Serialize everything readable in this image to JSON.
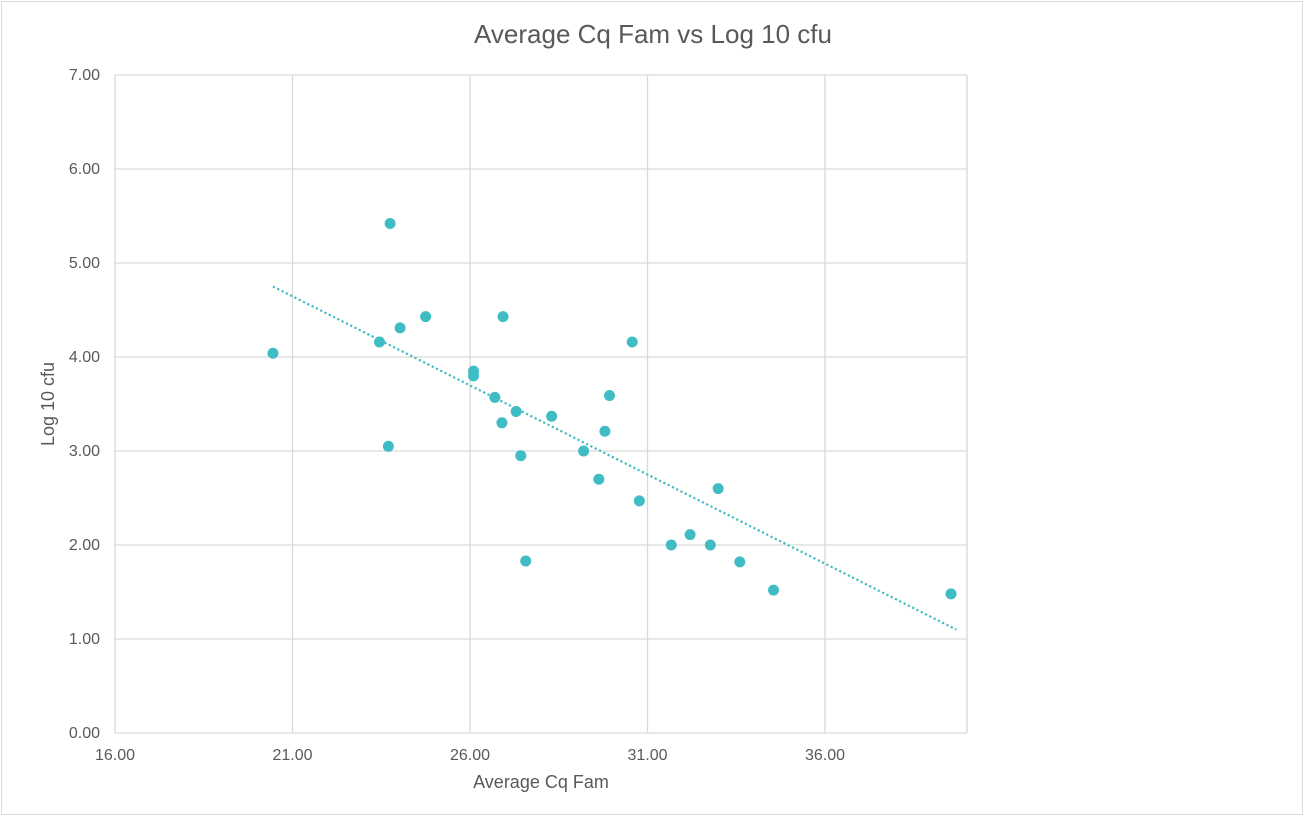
{
  "chart_data": {
    "type": "scatter",
    "title": "Average Cq Fam vs Log 10 cfu",
    "xlabel": "Average Cq Fam",
    "ylabel": "Log 10 cfu",
    "xlim": [
      16,
      40
    ],
    "ylim": [
      0,
      7
    ],
    "x_ticks": [
      "16.00",
      "21.00",
      "26.00",
      "31.00",
      "36.00"
    ],
    "y_ticks": [
      "0.00",
      "1.00",
      "2.00",
      "3.00",
      "4.00",
      "5.00",
      "6.00",
      "7.00"
    ],
    "grid": true,
    "legend": "none",
    "colors": {
      "points": "#3fbcc4",
      "trendline": "#3fbcc4",
      "grid": "#d9d9d9",
      "text": "#595959"
    },
    "trendline": {
      "style": "dotted",
      "x": [
        20.45,
        39.7
      ],
      "y": [
        4.75,
        1.1
      ]
    },
    "series": [
      {
        "points": [
          {
            "x": 20.45,
            "y": 4.04
          },
          {
            "x": 23.45,
            "y": 4.16
          },
          {
            "x": 23.75,
            "y": 5.42
          },
          {
            "x": 23.7,
            "y": 3.05
          },
          {
            "x": 24.03,
            "y": 4.31
          },
          {
            "x": 24.75,
            "y": 4.43
          },
          {
            "x": 26.1,
            "y": 3.85
          },
          {
            "x": 26.1,
            "y": 3.8
          },
          {
            "x": 26.7,
            "y": 3.57
          },
          {
            "x": 26.93,
            "y": 4.43
          },
          {
            "x": 26.9,
            "y": 3.3
          },
          {
            "x": 27.3,
            "y": 3.42
          },
          {
            "x": 27.43,
            "y": 2.95
          },
          {
            "x": 27.57,
            "y": 1.83
          },
          {
            "x": 28.3,
            "y": 3.37
          },
          {
            "x": 29.2,
            "y": 3.0
          },
          {
            "x": 29.63,
            "y": 2.7
          },
          {
            "x": 29.8,
            "y": 3.21
          },
          {
            "x": 29.93,
            "y": 3.59
          },
          {
            "x": 30.57,
            "y": 4.16
          },
          {
            "x": 30.77,
            "y": 2.47
          },
          {
            "x": 31.67,
            "y": 2.0
          },
          {
            "x": 32.2,
            "y": 2.11
          },
          {
            "x": 32.77,
            "y": 2.0
          },
          {
            "x": 32.99,
            "y": 2.6
          },
          {
            "x": 33.6,
            "y": 1.82
          },
          {
            "x": 34.55,
            "y": 1.52
          },
          {
            "x": 39.55,
            "y": 1.48
          }
        ]
      }
    ]
  }
}
